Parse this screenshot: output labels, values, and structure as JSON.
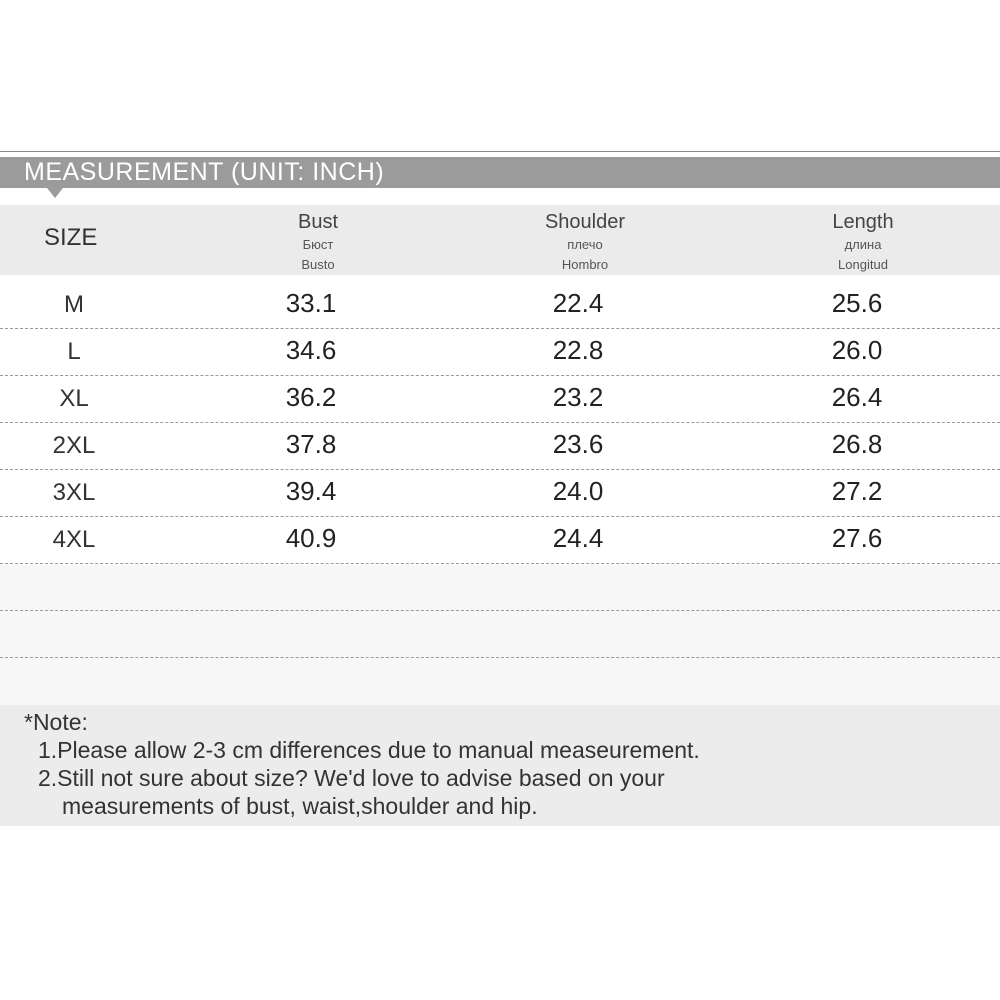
{
  "header": {
    "title": "MEASUREMENT (UNIT: INCH)"
  },
  "table": {
    "size_header": "SIZE",
    "columns": [
      {
        "name": "Bust",
        "ru": "Бюст",
        "es": "Busto"
      },
      {
        "name": "Shoulder",
        "ru": "плечо",
        "es": "Hombro"
      },
      {
        "name": "Length",
        "ru": "длина",
        "es": "Longitud"
      }
    ],
    "rows": [
      [
        "M",
        "33.1",
        "22.4",
        "25.6"
      ],
      [
        "L",
        "34.6",
        "22.8",
        "26.0"
      ],
      [
        "XL",
        "36.2",
        "23.2",
        "26.4"
      ],
      [
        "2XL",
        "37.8",
        "23.6",
        "26.8"
      ],
      [
        "3XL",
        "39.4",
        "24.0",
        "27.2"
      ],
      [
        "4XL",
        "40.9",
        "24.4",
        "27.6"
      ]
    ]
  },
  "note": {
    "title": "*Note:",
    "lines": [
      "1.Please allow 2-3 cm differences due to manual measeurement.",
      "2.Still not sure about size? We'd love to advise based on your",
      "measurements of bust, waist,shoulder and hip."
    ]
  }
}
